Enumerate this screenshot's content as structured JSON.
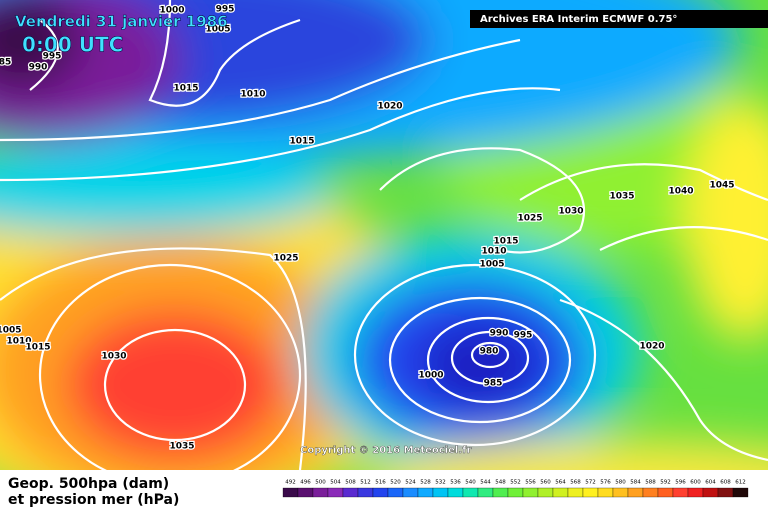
{
  "header": {
    "date": "Vendredi 31 janvier 1986",
    "time": "0:00 UTC",
    "source": "Archives ERA Interim ECMWF 0.75°"
  },
  "copyright": "Copyright © 2016 Meteociel.fr",
  "legend": {
    "line1": "Geop. 500hpa (dam)",
    "line2": "et pression mer (hPa)",
    "scale": [
      492,
      496,
      500,
      504,
      508,
      512,
      516,
      520,
      524,
      528,
      532,
      536,
      540,
      544,
      548,
      552,
      556,
      560,
      564,
      568,
      572,
      576,
      580,
      584,
      588,
      592,
      596,
      600,
      604,
      608,
      612
    ],
    "colors": [
      "#3a0a4a",
      "#5a1070",
      "#7a1e9a",
      "#8a2ab8",
      "#5a2ad0",
      "#3a38e0",
      "#2244ee",
      "#1a66f8",
      "#1a8cff",
      "#10aaff",
      "#00c4f4",
      "#00dcdc",
      "#10e8b0",
      "#30ec80",
      "#50ee50",
      "#70f038",
      "#90f030",
      "#b0f028",
      "#d0f020",
      "#eef020",
      "#fff020",
      "#ffdc20",
      "#ffc020",
      "#ffa020",
      "#ff8020",
      "#ff6020",
      "#ff4030",
      "#f02020",
      "#c01010",
      "#801010",
      "#200808"
    ]
  },
  "isobars": [
    1000,
    995,
    1005,
    995,
    990,
    85,
    1015,
    1010,
    1020,
    1015,
    1025,
    1025,
    1030,
    1035,
    1040,
    1045,
    1015,
    1010,
    1005,
    990,
    995,
    980,
    985,
    1000,
    1020,
    1030,
    1035,
    1005,
    1010,
    1015
  ]
}
